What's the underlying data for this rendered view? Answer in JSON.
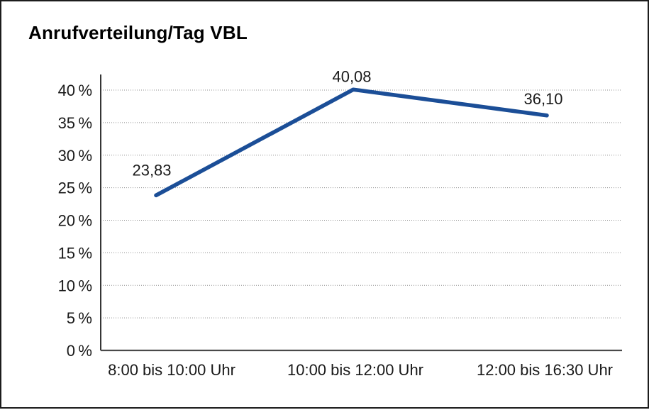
{
  "chart_data": {
    "type": "line",
    "title": "Anrufverteilung/Tag VBL",
    "categories": [
      "8:00 bis 10:00 Uhr",
      "10:00 bis 12:00 Uhr",
      "12:00 bis 16:30 Uhr"
    ],
    "series": [
      {
        "name": "Anrufverteilung/Tag VBL",
        "values": [
          23.83,
          40.08,
          36.1
        ]
      }
    ],
    "value_labels": [
      "23,83",
      "40,08",
      "36,10"
    ],
    "y_ticks": [
      0,
      5,
      10,
      15,
      20,
      25,
      30,
      35,
      40
    ],
    "y_tick_labels": [
      "0 %",
      "5 %",
      "10 %",
      "15 %",
      "20 %",
      "25 %",
      "30 %",
      "35 %",
      "40 %"
    ],
    "ylim": [
      0,
      40
    ],
    "xlabel": "",
    "ylabel": "",
    "grid": "dotted-horizontal",
    "legend": "none",
    "line_color": "#1b4e97",
    "axis_color": "#1f1f1f",
    "grid_color": "#8f8f8f",
    "text_color": "#1a1a1a",
    "frame_color": "#1c1c1c",
    "background_color": "#ffffff"
  }
}
